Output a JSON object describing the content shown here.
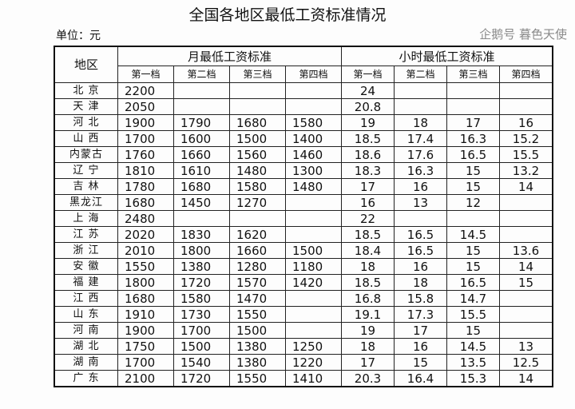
{
  "title": "全国各地区最低工资标准情况",
  "unit": "单位：元",
  "header": {
    "region": "地区",
    "monthly": "月最低工资标准",
    "hourly": "小时最低工资标准",
    "tiers": [
      "第一档",
      "第二档",
      "第三档",
      "第四档"
    ]
  },
  "rows": [
    {
      "region": "北 京",
      "m": [
        "2200",
        "",
        "",
        ""
      ],
      "h": [
        "24",
        "",
        "",
        ""
      ]
    },
    {
      "region": "天 津",
      "m": [
        "2050",
        "",
        "",
        ""
      ],
      "h": [
        "20.8",
        "",
        "",
        ""
      ]
    },
    {
      "region": "河 北",
      "m": [
        "1900",
        "1790",
        "1680",
        "1580"
      ],
      "h": [
        "19",
        "18",
        "17",
        "16"
      ]
    },
    {
      "region": "山 西",
      "m": [
        "1700",
        "1600",
        "1500",
        "1400"
      ],
      "h": [
        "18.5",
        "17.4",
        "16.3",
        "15.2"
      ]
    },
    {
      "region": "内蒙古",
      "m": [
        "1760",
        "1660",
        "1560",
        "1460"
      ],
      "h": [
        "18.6",
        "17.6",
        "16.5",
        "15.5"
      ]
    },
    {
      "region": "辽 宁",
      "m": [
        "1810",
        "1610",
        "1480",
        "1300"
      ],
      "h": [
        "18.3",
        "16.3",
        "15",
        "13.2"
      ]
    },
    {
      "region": "吉 林",
      "m": [
        "1780",
        "1680",
        "1580",
        "1480"
      ],
      "h": [
        "17",
        "16",
        "15",
        "14"
      ]
    },
    {
      "region": "黑龙江",
      "m": [
        "1680",
        "1450",
        "1270",
        ""
      ],
      "h": [
        "16",
        "13",
        "12",
        ""
      ]
    },
    {
      "region": "上 海",
      "m": [
        "2480",
        "",
        "",
        ""
      ],
      "h": [
        "22",
        "",
        "",
        ""
      ]
    },
    {
      "region": "江 苏",
      "m": [
        "2020",
        "1830",
        "1620",
        ""
      ],
      "h": [
        "18.5",
        "16.5",
        "14.5",
        ""
      ]
    },
    {
      "region": "浙 江",
      "m": [
        "2010",
        "1800",
        "1660",
        "1500"
      ],
      "h": [
        "18.4",
        "16.5",
        "15",
        "13.6"
      ]
    },
    {
      "region": "安 徽",
      "m": [
        "1550",
        "1380",
        "1280",
        "1180"
      ],
      "h": [
        "18",
        "16",
        "15",
        "14"
      ]
    },
    {
      "region": "福 建",
      "m": [
        "1800",
        "1720",
        "1570",
        "1420"
      ],
      "h": [
        "18.5",
        "18",
        "16.5",
        "15"
      ]
    },
    {
      "region": "江 西",
      "m": [
        "1680",
        "1580",
        "1470",
        ""
      ],
      "h": [
        "16.8",
        "15.8",
        "14.7",
        ""
      ]
    },
    {
      "region": "山 东",
      "m": [
        "1910",
        "1730",
        "1550",
        ""
      ],
      "h": [
        "19.1",
        "17.3",
        "15.5",
        ""
      ]
    },
    {
      "region": "河 南",
      "m": [
        "1900",
        "1700",
        "1500",
        ""
      ],
      "h": [
        "19",
        "17",
        "15",
        ""
      ]
    },
    {
      "region": "湖 北",
      "m": [
        "1750",
        "1500",
        "1380",
        "1250"
      ],
      "h": [
        "18",
        "16",
        "14.5",
        "13"
      ]
    },
    {
      "region": "湖 南",
      "m": [
        "1700",
        "1540",
        "1380",
        "1220"
      ],
      "h": [
        "17",
        "15",
        "13.5",
        "12.5"
      ]
    },
    {
      "region": "广 东",
      "m": [
        "2100",
        "1720",
        "1550",
        "1410"
      ],
      "h": [
        "20.3",
        "16.4",
        "15.3",
        "14"
      ]
    }
  ],
  "watermark": "企鹅号 暮色天使"
}
